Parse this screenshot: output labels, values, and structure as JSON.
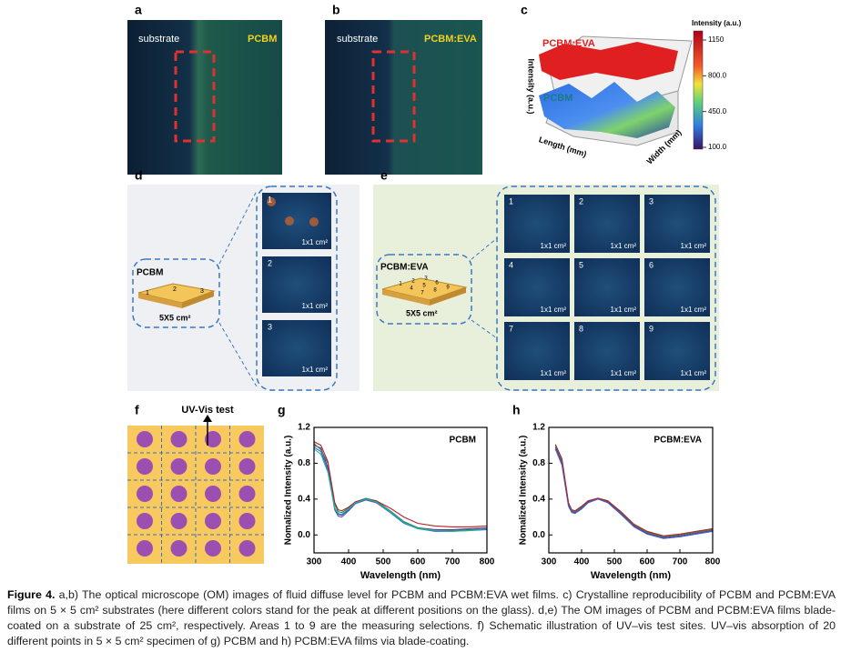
{
  "panel_a": {
    "label": "a",
    "left": "substrate",
    "right": "PCBM"
  },
  "panel_b": {
    "label": "b",
    "left": "substrate",
    "right": "PCBM:EVA"
  },
  "panel_c": {
    "label": "c",
    "colorbar_title": "Intensity (a.u.)",
    "colorbar_ticks": [
      "1150",
      "800.0",
      "450.0",
      "100.0"
    ],
    "upper": "PCBM:EVA",
    "lower": "PCBM",
    "z_axis": "Intensity (a.u.)",
    "x_axis": "Length (mm)",
    "y_axis": "Width (mm)"
  },
  "panel_d": {
    "label": "d",
    "sample": "PCBM",
    "substrate": "5X5 cm²",
    "points": [
      "1",
      "2",
      "3"
    ],
    "tiles": [
      {
        "number": "1",
        "area": "1x1 cm²"
      },
      {
        "number": "2",
        "area": "1x1 cm²"
      },
      {
        "number": "3",
        "area": "1x1 cm²"
      }
    ]
  },
  "panel_e": {
    "label": "e",
    "sample": "PCBM:EVA",
    "substrate": "5X5 cm²",
    "points": [
      "1",
      "2",
      "3",
      "4",
      "5",
      "6",
      "7",
      "8",
      "9"
    ],
    "tiles": [
      {
        "number": "1",
        "area": "1x1 cm²"
      },
      {
        "number": "2",
        "area": "1x1 cm²"
      },
      {
        "number": "3",
        "area": "1x1 cm²"
      },
      {
        "number": "4",
        "area": "1x1 cm²"
      },
      {
        "number": "5",
        "area": "1x1 cm²"
      },
      {
        "number": "6",
        "area": "1x1 cm²"
      },
      {
        "number": "7",
        "area": "1x1 cm²"
      },
      {
        "number": "8",
        "area": "1x1 cm²"
      },
      {
        "number": "9",
        "area": "1x1 cm²"
      }
    ]
  },
  "panel_f": {
    "label": "f",
    "title": "UV-Vis test"
  },
  "chart_data": [
    {
      "type": "line",
      "panel": "g",
      "title": "PCBM",
      "x_label": "Wavelength (nm)",
      "y_label": "Nomalized Intensity (a.u.)",
      "x": [
        300,
        320,
        340,
        360,
        370,
        380,
        400,
        420,
        450,
        480,
        520,
        560,
        600,
        650,
        700,
        750,
        800
      ],
      "xlim": [
        300,
        800
      ],
      "xticks": [
        300,
        400,
        500,
        600,
        700,
        800
      ],
      "ylim": [
        -0.2,
        1.2
      ],
      "yticks": [
        {
          "value": 0,
          "label": "0.0"
        },
        0.4,
        0.8,
        1.2
      ],
      "series": [
        {
          "color": "#7b2d8e",
          "values": [
            1.0,
            0.97,
            0.75,
            0.3,
            0.23,
            0.22,
            0.28,
            0.36,
            0.4,
            0.37,
            0.26,
            0.14,
            0.08,
            0.06,
            0.06,
            0.07,
            0.08
          ]
        },
        {
          "color": "#2e8b57",
          "values": [
            1.02,
            0.95,
            0.8,
            0.34,
            0.26,
            0.25,
            0.3,
            0.37,
            0.41,
            0.38,
            0.27,
            0.15,
            0.08,
            0.05,
            0.05,
            0.06,
            0.07
          ]
        },
        {
          "color": "#3a5fcd",
          "values": [
            0.98,
            0.93,
            0.72,
            0.28,
            0.21,
            0.2,
            0.27,
            0.35,
            0.39,
            0.36,
            0.25,
            0.13,
            0.07,
            0.04,
            0.04,
            0.05,
            0.06
          ]
        },
        {
          "color": "#b22222",
          "values": [
            1.04,
            1.0,
            0.82,
            0.36,
            0.28,
            0.27,
            0.31,
            0.37,
            0.4,
            0.38,
            0.3,
            0.2,
            0.13,
            0.1,
            0.09,
            0.09,
            0.1
          ]
        },
        {
          "color": "#20b2aa",
          "values": [
            0.96,
            0.9,
            0.7,
            0.3,
            0.24,
            0.23,
            0.29,
            0.36,
            0.4,
            0.37,
            0.26,
            0.14,
            0.07,
            0.05,
            0.04,
            0.05,
            0.07
          ]
        }
      ]
    },
    {
      "type": "line",
      "panel": "h",
      "title": "PCBM:EVA",
      "x_label": "Wavelength (nm)",
      "y_label": "Nomalized Intensity (a.u.)",
      "x": [
        300,
        320,
        340,
        360,
        370,
        380,
        400,
        420,
        450,
        480,
        520,
        560,
        600,
        650,
        700,
        750,
        800
      ],
      "xlim": [
        300,
        800
      ],
      "xticks": [
        300,
        400,
        500,
        600,
        700,
        800
      ],
      "ylim": [
        -0.2,
        1.2
      ],
      "yticks": [
        {
          "value": 0,
          "label": "0.0"
        },
        0.4,
        0.8,
        1.2
      ],
      "series": [
        {
          "color": "#7b2d8e",
          "values": [
            null,
            0.98,
            0.8,
            0.33,
            0.26,
            0.25,
            0.3,
            0.37,
            0.41,
            0.37,
            0.24,
            0.1,
            0.02,
            -0.03,
            -0.01,
            0.02,
            0.05
          ]
        },
        {
          "color": "#2e8b57",
          "values": [
            null,
            1.0,
            0.83,
            0.35,
            0.27,
            0.26,
            0.31,
            0.38,
            0.41,
            0.38,
            0.25,
            0.11,
            0.03,
            -0.02,
            0.0,
            0.03,
            0.06
          ]
        },
        {
          "color": "#3a5fcd",
          "values": [
            null,
            0.96,
            0.78,
            0.32,
            0.25,
            0.24,
            0.29,
            0.36,
            0.4,
            0.36,
            0.23,
            0.09,
            0.01,
            -0.04,
            -0.02,
            0.01,
            0.04
          ]
        },
        {
          "color": "#b22222",
          "values": [
            null,
            1.01,
            0.85,
            0.36,
            0.28,
            0.27,
            0.32,
            0.38,
            0.41,
            0.38,
            0.26,
            0.12,
            0.04,
            -0.01,
            0.01,
            0.04,
            0.07
          ]
        }
      ]
    }
  ],
  "caption": {
    "label": "Figure 4.",
    "text": "a,b) The optical microscope (OM) images of fluid diffuse level for PCBM and PCBM:EVA wet films. c) Crystalline reproducibility of PCBM and PCBM:EVA films on 5 × 5 cm² substrates (here different colors stand for the peak at different positions on the glass). d,e) The OM images of PCBM and PCBM:EVA films blade-coated on a substrate of 25 cm², respectively. Areas 1 to 9 are the measuring selections. f) Schematic illustration of UV–vis test sites. UV–vis absorption of 20 different points in 5 × 5 cm² specimen of g) PCBM and h) PCBM:EVA films via blade-coating."
  }
}
